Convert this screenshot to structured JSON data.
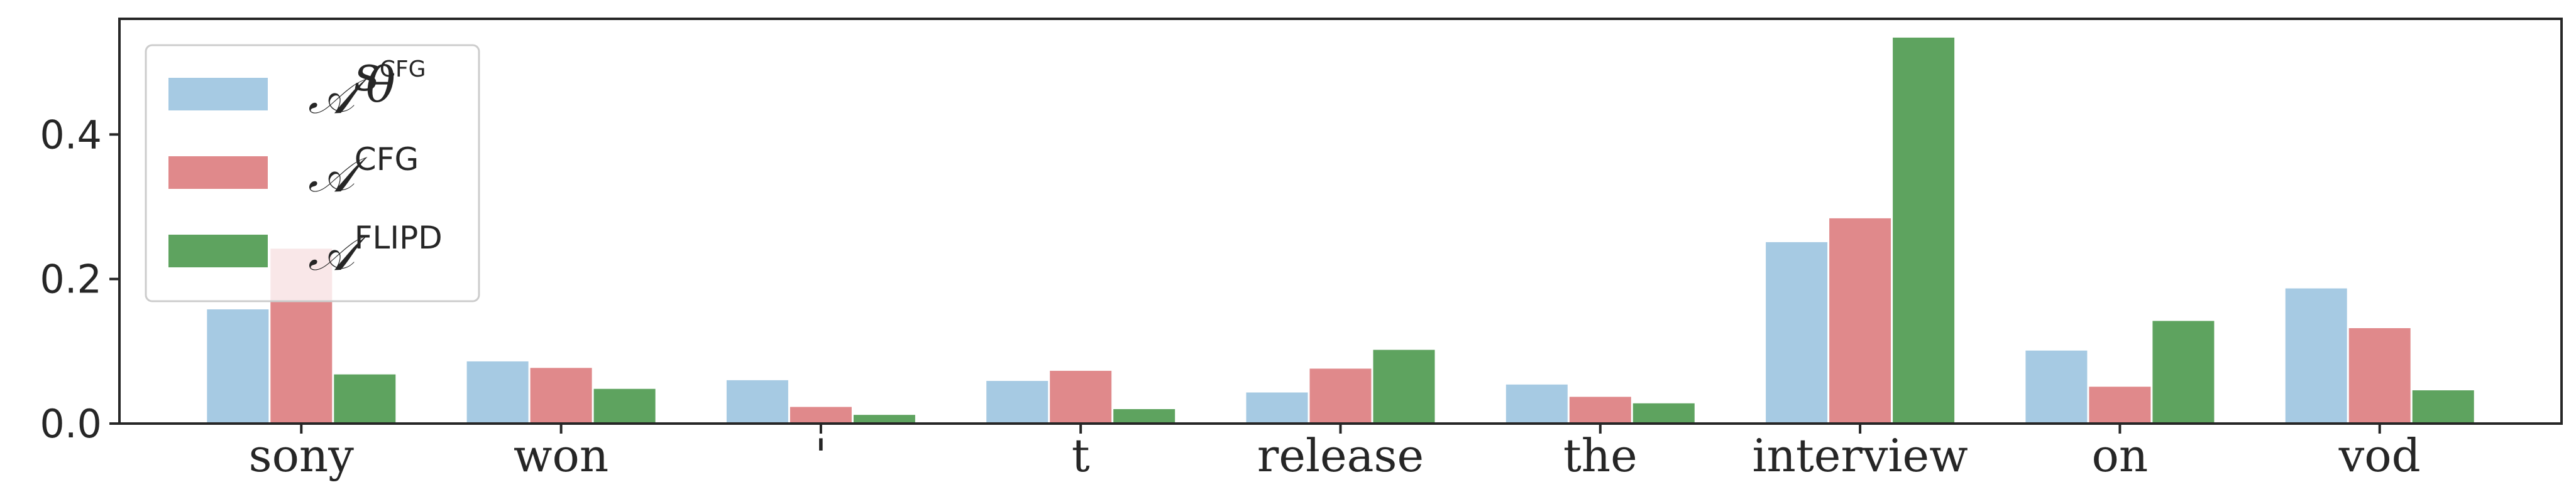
{
  "chart_data": {
    "type": "bar",
    "categories": [
      "sony",
      "won",
      "'",
      "t",
      "release",
      "the",
      "interview",
      "on",
      "vod"
    ],
    "series": [
      {
        "name": "A^{s_θ^{CFG}}",
        "legend": {
          "base": "𝒜",
          "sup": "s",
          "sub": "θ",
          "subsup": "CFG"
        },
        "color": "#a6cae3",
        "values": [
          0.158,
          0.086,
          0.06,
          0.059,
          0.043,
          0.054,
          0.251,
          0.101,
          0.187
        ]
      },
      {
        "name": "A^{CFG}",
        "legend": {
          "base": "𝒜",
          "sup": "CFG"
        },
        "color": "#e0898b",
        "values": [
          0.242,
          0.077,
          0.023,
          0.073,
          0.076,
          0.037,
          0.284,
          0.051,
          0.132
        ]
      },
      {
        "name": "A^{FLIPD}",
        "legend": {
          "base": "𝒜",
          "sup": "FLIPD"
        },
        "color": "#5ea35f",
        "values": [
          0.068,
          0.048,
          0.012,
          0.02,
          0.102,
          0.028,
          0.534,
          0.142,
          0.046
        ]
      }
    ],
    "ylim": [
      0,
      0.56
    ],
    "yticks": [
      0.0,
      0.2,
      0.4
    ],
    "ytick_labels": [
      "0.0",
      "0.2",
      "0.4"
    ],
    "legend_position": "top-left",
    "grid": false
  }
}
